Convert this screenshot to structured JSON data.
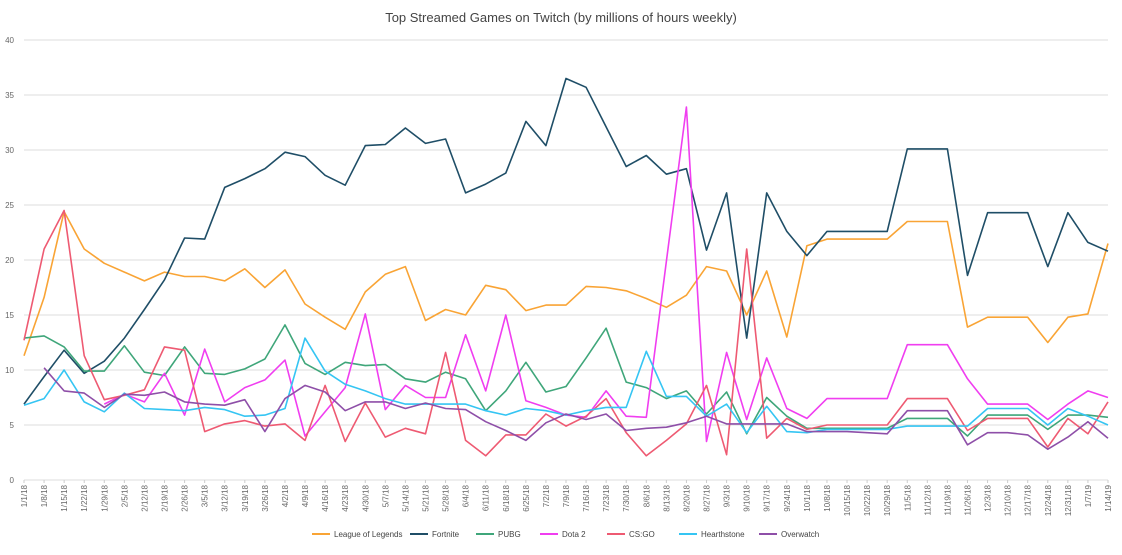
{
  "chart_data": {
    "type": "line",
    "title": "Top Streamed Games on Twitch (by millions of hours weekly)",
    "xlabel": "",
    "ylabel": "",
    "ylim": [
      0,
      40
    ],
    "yticks": [
      0,
      5,
      10,
      15,
      20,
      25,
      30,
      35,
      40
    ],
    "grid": true,
    "legend": "bottom",
    "x": [
      "1/1/18",
      "1/8/18",
      "1/15/18",
      "1/22/18",
      "1/29/18",
      "2/5/18",
      "2/12/18",
      "2/19/18",
      "2/26/18",
      "3/5/18",
      "3/12/18",
      "3/19/18",
      "3/26/18",
      "4/2/18",
      "4/9/18",
      "4/16/18",
      "4/23/18",
      "4/30/18",
      "5/7/18",
      "5/14/18",
      "5/21/18",
      "5/28/18",
      "6/4/18",
      "6/11/18",
      "6/18/18",
      "6/25/18",
      "7/2/18",
      "7/9/18",
      "7/16/18",
      "7/23/18",
      "7/30/18",
      "8/6/18",
      "8/13/18",
      "8/20/18",
      "8/27/18",
      "9/3/18",
      "9/10/18",
      "9/17/18",
      "9/24/18",
      "10/1/18",
      "10/8/18",
      "10/15/18",
      "10/22/18",
      "10/29/18",
      "11/5/18",
      "11/12/18",
      "11/19/18",
      "11/26/18",
      "12/3/18",
      "12/10/18",
      "12/17/18",
      "12/24/18",
      "12/31/18",
      "1/7/19",
      "1/14/19"
    ],
    "series": [
      {
        "name": "League of Legends",
        "color": "#f9a435",
        "values": [
          11.3,
          16.6,
          24.4,
          21.0,
          19.7,
          18.9,
          18.1,
          18.9,
          18.5,
          18.5,
          18.1,
          19.2,
          17.5,
          19.1,
          16.0,
          14.8,
          13.7,
          17.1,
          18.7,
          19.4,
          14.5,
          15.5,
          15.0,
          17.7,
          17.3,
          15.4,
          15.9,
          15.9,
          17.6,
          17.5,
          17.2,
          16.5,
          15.7,
          16.8,
          19.4,
          19.0,
          15.0,
          19.0,
          13.0,
          21.3,
          21.9,
          21.9,
          21.9,
          21.9,
          23.5,
          23.5,
          23.5,
          13.9,
          14.8,
          14.8,
          14.8,
          12.5,
          14.8,
          15.1,
          21.5
        ]
      },
      {
        "name": "Fortnite",
        "color": "#1f4e67",
        "values": [
          6.9,
          9.4,
          11.8,
          9.7,
          10.8,
          12.9,
          15.5,
          18.2,
          22.0,
          21.9,
          26.6,
          27.4,
          28.3,
          29.8,
          29.4,
          27.7,
          26.8,
          30.4,
          30.5,
          32.0,
          30.6,
          31.0,
          26.1,
          26.9,
          27.9,
          32.6,
          30.4,
          36.5,
          35.7,
          32.1,
          28.5,
          29.5,
          27.8,
          28.3,
          20.9,
          26.1,
          12.9,
          26.1,
          22.6,
          20.4,
          22.6,
          22.6,
          22.6,
          22.6,
          30.1,
          30.1,
          30.1,
          18.6,
          24.3,
          24.3,
          24.3,
          19.4,
          24.3,
          21.6,
          20.8
        ]
      },
      {
        "name": "PUBG",
        "color": "#3fa67a",
        "values": [
          12.9,
          13.1,
          12.1,
          9.9,
          9.9,
          12.2,
          9.8,
          9.5,
          12.1,
          9.7,
          9.6,
          10.1,
          11.0,
          14.1,
          10.6,
          9.6,
          10.7,
          10.4,
          10.5,
          9.2,
          8.9,
          9.8,
          9.2,
          6.3,
          8.1,
          10.7,
          8.0,
          8.5,
          11.1,
          13.8,
          8.9,
          8.4,
          7.4,
          8.1,
          6.0,
          8.0,
          4.2,
          7.5,
          5.8,
          4.7,
          4.7,
          4.7,
          4.7,
          4.7,
          5.6,
          5.6,
          5.6,
          4.0,
          5.9,
          5.9,
          5.9,
          4.6,
          5.9,
          5.9,
          5.7
        ]
      },
      {
        "name": "Dota 2",
        "color": "#f03ef0",
        "values": [
          null,
          null,
          null,
          null,
          6.9,
          7.8,
          7.1,
          9.7,
          5.9,
          11.9,
          7.1,
          8.4,
          9.1,
          10.9,
          4.0,
          6.2,
          8.4,
          15.1,
          6.4,
          8.6,
          7.5,
          7.5,
          13.2,
          8.1,
          15.0,
          7.2,
          6.6,
          5.9,
          5.7,
          8.1,
          5.8,
          5.7,
          19.9,
          33.9,
          3.5,
          11.6,
          5.5,
          11.1,
          6.5,
          5.6,
          7.4,
          7.4,
          7.4,
          7.4,
          12.3,
          12.3,
          12.3,
          9.2,
          6.9,
          6.9,
          6.9,
          5.5,
          6.9,
          8.1,
          7.5
        ]
      },
      {
        "name": "CS:GO",
        "color": "#ee5a72",
        "values": [
          12.7,
          21.0,
          24.5,
          11.3,
          7.3,
          7.7,
          8.2,
          12.1,
          11.8,
          4.4,
          5.1,
          5.4,
          4.9,
          5.1,
          3.6,
          8.6,
          3.5,
          7.0,
          3.9,
          4.7,
          4.2,
          11.6,
          3.6,
          2.2,
          4.1,
          4.1,
          6.0,
          4.9,
          5.8,
          7.4,
          4.3,
          2.2,
          3.6,
          5.1,
          8.6,
          2.3,
          21.0,
          3.8,
          5.6,
          4.6,
          5.0,
          5.0,
          5.0,
          5.0,
          7.4,
          7.4,
          7.4,
          4.5,
          5.6,
          5.6,
          5.6,
          3.0,
          5.6,
          4.2,
          7.1
        ]
      },
      {
        "name": "Hearthstone",
        "color": "#35c5f3",
        "values": [
          6.8,
          7.4,
          10.0,
          7.1,
          6.2,
          7.9,
          6.5,
          6.4,
          6.3,
          6.6,
          6.4,
          5.8,
          5.9,
          6.5,
          12.9,
          9.9,
          8.7,
          8.1,
          7.4,
          6.9,
          6.9,
          6.9,
          6.9,
          6.3,
          5.9,
          6.5,
          6.3,
          5.9,
          6.3,
          6.6,
          6.6,
          11.7,
          7.6,
          7.6,
          5.8,
          6.9,
          4.3,
          6.7,
          4.4,
          4.3,
          4.6,
          4.6,
          4.6,
          4.6,
          4.9,
          4.9,
          4.9,
          4.9,
          6.5,
          6.5,
          6.5,
          5.0,
          6.5,
          5.8,
          5.0
        ]
      },
      {
        "name": "Overwatch",
        "color": "#8e4fa8",
        "values": [
          null,
          10.2,
          8.1,
          7.9,
          6.6,
          7.8,
          7.7,
          8.0,
          7.1,
          6.9,
          6.8,
          7.3,
          4.4,
          7.4,
          8.6,
          8.0,
          6.3,
          7.1,
          7.1,
          6.5,
          7.0,
          6.5,
          6.4,
          5.3,
          4.5,
          3.6,
          5.2,
          6.0,
          5.5,
          6.0,
          4.5,
          4.7,
          4.8,
          5.2,
          5.8,
          5.1,
          5.1,
          5.1,
          5.1,
          4.4,
          4.4,
          4.4,
          4.3,
          4.2,
          6.3,
          6.3,
          6.3,
          3.2,
          4.3,
          4.3,
          4.1,
          2.8,
          3.9,
          5.3,
          3.8
        ]
      }
    ]
  }
}
